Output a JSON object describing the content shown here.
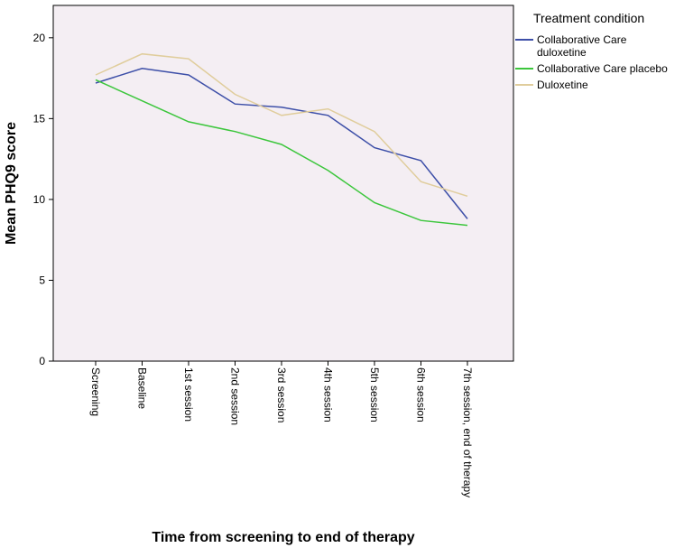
{
  "chart_data": {
    "type": "line",
    "xlabel": "Time from screening to end of therapy",
    "ylabel": "Mean PHQ9 score",
    "categories": [
      "Screening",
      "Baseline",
      "1st session",
      "2nd session",
      "3rd session",
      "4th session",
      "5th session",
      "6th session",
      "7th session, end of therapy"
    ],
    "ylim": [
      0,
      22
    ],
    "yticks": [
      0,
      5,
      10,
      15,
      20
    ],
    "grid": false,
    "legend": {
      "title": "Treatment condition",
      "placement": "right"
    },
    "series": [
      {
        "name": "Collaborative Care duloxetine",
        "name_lines": [
          "Collaborative Care",
          "duloxetine"
        ],
        "color": "#3d4fa8",
        "values": [
          17.2,
          18.1,
          17.7,
          15.9,
          15.7,
          15.2,
          13.2,
          12.4,
          8.8
        ]
      },
      {
        "name": "Collaborative Care placebo",
        "name_lines": [
          "Collaborative Care placebo"
        ],
        "color": "#3cc63c",
        "values": [
          17.4,
          16.1,
          14.8,
          14.2,
          13.4,
          11.8,
          9.8,
          8.7,
          8.4
        ]
      },
      {
        "name": "Duloxetine",
        "name_lines": [
          "Duloxetine"
        ],
        "color": "#e0cd9c",
        "values": [
          17.7,
          19.0,
          18.7,
          16.5,
          15.2,
          15.6,
          14.2,
          11.1,
          10.2
        ]
      }
    ],
    "plot_background": "#f4eef3"
  }
}
